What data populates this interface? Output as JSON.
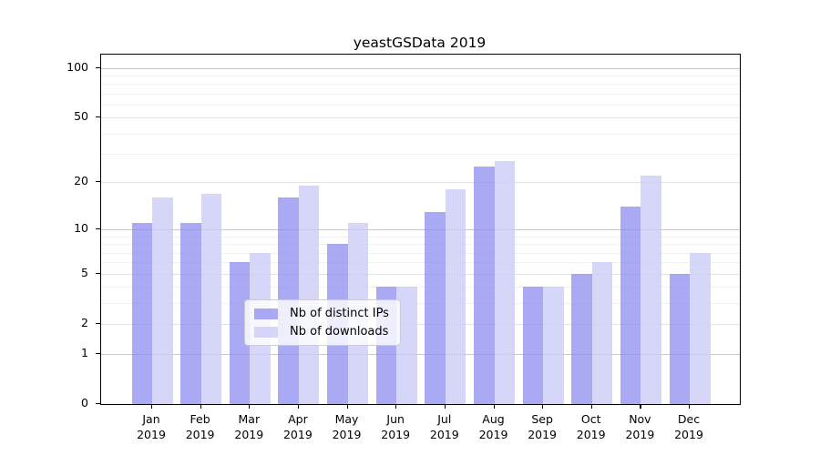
{
  "figure": {
    "title": "yeastGSData 2019",
    "background_color": "#ffffff",
    "axis_color": "#000000"
  },
  "chart_data": {
    "type": "bar",
    "title": "yeastGSData 2019",
    "categories": [
      "Jan 2019",
      "Feb 2019",
      "Mar 2019",
      "Apr 2019",
      "May 2019",
      "Jun 2019",
      "Jul 2019",
      "Aug 2019",
      "Sep 2019",
      "Oct 2019",
      "Nov 2019",
      "Dec 2019"
    ],
    "series": [
      {
        "name": "Nb of distinct IPs",
        "color": "rgba(136,136,240,0.72)",
        "values": [
          11,
          11,
          6,
          16,
          8,
          4,
          13,
          25,
          4,
          5,
          14,
          5
        ]
      },
      {
        "name": "Nb of downloads",
        "color": "rgba(204,204,248,0.80)",
        "values": [
          16,
          17,
          7,
          19,
          11,
          4,
          18,
          27,
          4,
          6,
          22,
          7
        ]
      }
    ],
    "yscale": "log1p",
    "ylim": [
      0,
      120
    ],
    "ytick_values": [
      0,
      1,
      2,
      5,
      10,
      20,
      50,
      100
    ],
    "ytick_labels": [
      "0",
      "1",
      "2",
      "5",
      "10",
      "20",
      "50",
      "100"
    ],
    "xlabel": "",
    "ylabel": "",
    "grid": {
      "enabled": true,
      "major_values": [
        1,
        10,
        100
      ],
      "mid_values": [
        2,
        5,
        20,
        50
      ],
      "minor_values": [
        3,
        4,
        6,
        7,
        8,
        9,
        30,
        40,
        60,
        70,
        80,
        90
      ],
      "major_color": "#c8c8c8",
      "mid_color": "#e3e3e3",
      "minor_color": "#f1f1f1"
    },
    "legend": {
      "position": "bottom-center",
      "entries": [
        "Nb of distinct IPs",
        "Nb of downloads"
      ]
    }
  }
}
